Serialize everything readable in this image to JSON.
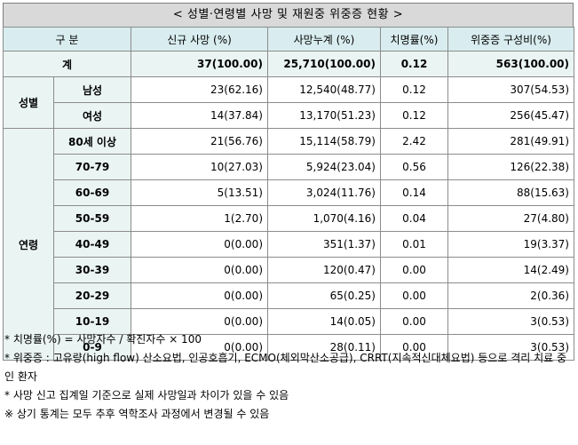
{
  "title": "< 성별·연령별 사망 및 재원중 위중증 현황 >",
  "header": {
    "category": "구 분",
    "new_deaths": "신규 사망 (%)",
    "cum_deaths": "사망누계 (%)",
    "cfr": "치명률(%)",
    "critical": "위중증 구성비(%)"
  },
  "total": {
    "label": "계",
    "new_deaths": "37(100.00)",
    "cum_deaths": "25,710(100.00)",
    "cfr": "0.12",
    "critical": "563(100.00)"
  },
  "sex_group": {
    "label": "성별",
    "rows": [
      {
        "label": "남성",
        "new_deaths": "23(62.16)",
        "cum_deaths": "12,540(48.77)",
        "cfr": "0.12",
        "critical": "307(54.53)"
      },
      {
        "label": "여성",
        "new_deaths": "14(37.84)",
        "cum_deaths": "13,170(51.23)",
        "cfr": "0.12",
        "critical": "256(45.47)"
      }
    ]
  },
  "age_group": {
    "label": "연령",
    "rows": [
      {
        "label": "80세 이상",
        "new_deaths": "21(56.76)",
        "cum_deaths": "15,114(58.79)",
        "cfr": "2.42",
        "critical": "281(49.91)"
      },
      {
        "label": "70-79",
        "new_deaths": "10(27.03)",
        "cum_deaths": "5,924(23.04)",
        "cfr": "0.56",
        "critical": "126(22.38)"
      },
      {
        "label": "60-69",
        "new_deaths": "5(13.51)",
        "cum_deaths": "3,024(11.76)",
        "cfr": "0.14",
        "critical": "88(15.63)"
      },
      {
        "label": "50-59",
        "new_deaths": "1(2.70)",
        "cum_deaths": "1,070(4.16)",
        "cfr": "0.04",
        "critical": "27(4.80)"
      },
      {
        "label": "40-49",
        "new_deaths": "0(0.00)",
        "cum_deaths": "351(1.37)",
        "cfr": "0.01",
        "critical": "19(3.37)"
      },
      {
        "label": "30-39",
        "new_deaths": "0(0.00)",
        "cum_deaths": "120(0.47)",
        "cfr": "0.00",
        "critical": "14(2.49)"
      },
      {
        "label": "20-29",
        "new_deaths": "0(0.00)",
        "cum_deaths": "65(0.25)",
        "cfr": "0.00",
        "critical": "2(0.36)"
      },
      {
        "label": "10-19",
        "new_deaths": "0(0.00)",
        "cum_deaths": "14(0.05)",
        "cfr": "0.00",
        "critical": "3(0.53)"
      },
      {
        "label": "0-9",
        "new_deaths": "0(0.00)",
        "cum_deaths": "28(0.11)",
        "cfr": "0.00",
        "critical": "3(0.53)"
      }
    ]
  },
  "notes": [
    "* 치명률(%) = 사망자수 / 확진자수 × 100",
    "* 위중증 : 고유량(high flow) 산소요법, 인공호흡기, ECMO(체외막산소공급), CRRT(지속적신대체요법) 등으로 격리 치료 중인 환자",
    "* 사망 신고 집계일 기준으로 실제 사망일과 차이가 있을 수 있음",
    "※ 상기 통계는 모두 추후 역학조사 과정에서 변경될 수 있음"
  ]
}
